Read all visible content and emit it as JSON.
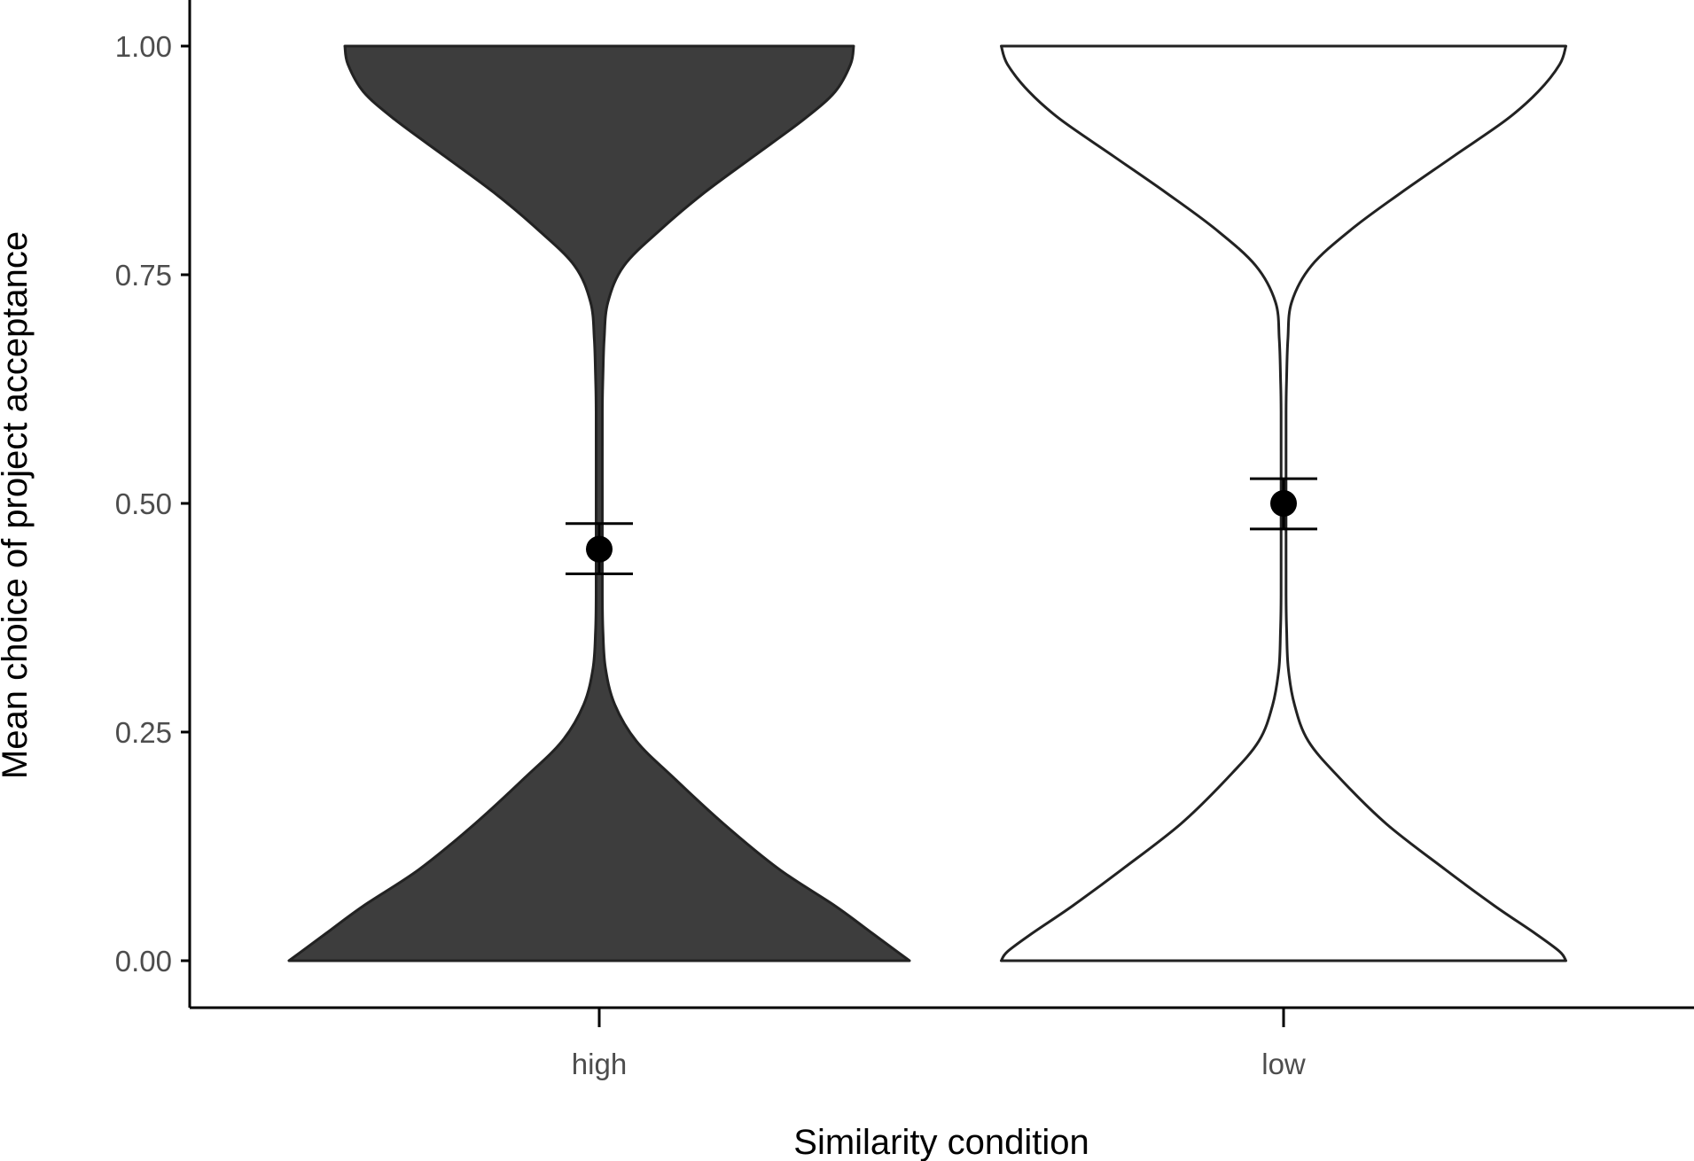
{
  "chart_data": {
    "type": "violin",
    "xlabel": "Similarity condition",
    "ylabel": "Mean choice of project acceptance",
    "categories": [
      "high",
      "low"
    ],
    "ylim": [
      -0.05,
      1.05
    ],
    "yticks": [
      0,
      0.25,
      0.5,
      0.75,
      1
    ],
    "ytick_labels": [
      "0.00",
      "0.25",
      "0.50",
      "0.75",
      "1.00"
    ],
    "grid": false,
    "legend": "none",
    "series": [
      {
        "category": "high",
        "fill": "#3d3d3d",
        "mean": 0.45,
        "error_low": 0.423,
        "error_high": 0.478,
        "density_profile": [
          [
            0.0,
            1.0
          ],
          [
            0.01,
            0.96
          ],
          [
            0.03,
            0.88
          ],
          [
            0.06,
            0.76
          ],
          [
            0.1,
            0.58
          ],
          [
            0.15,
            0.4
          ],
          [
            0.2,
            0.24
          ],
          [
            0.24,
            0.12
          ],
          [
            0.28,
            0.05
          ],
          [
            0.32,
            0.02
          ],
          [
            0.36,
            0.012
          ],
          [
            0.4,
            0.01
          ],
          [
            0.5,
            0.01
          ],
          [
            0.6,
            0.01
          ],
          [
            0.64,
            0.012
          ],
          [
            0.68,
            0.016
          ],
          [
            0.72,
            0.028
          ],
          [
            0.76,
            0.08
          ],
          [
            0.8,
            0.2
          ],
          [
            0.84,
            0.34
          ],
          [
            0.88,
            0.5
          ],
          [
            0.92,
            0.66
          ],
          [
            0.95,
            0.76
          ],
          [
            0.98,
            0.81
          ],
          [
            1.0,
            0.82
          ]
        ]
      },
      {
        "category": "low",
        "fill": "#ffffff",
        "mean": 0.5,
        "error_low": 0.472,
        "error_high": 0.527,
        "density_profile": [
          [
            0.0,
            0.91
          ],
          [
            0.01,
            0.89
          ],
          [
            0.03,
            0.81
          ],
          [
            0.06,
            0.68
          ],
          [
            0.1,
            0.52
          ],
          [
            0.15,
            0.33
          ],
          [
            0.2,
            0.18
          ],
          [
            0.24,
            0.08
          ],
          [
            0.28,
            0.035
          ],
          [
            0.32,
            0.015
          ],
          [
            0.36,
            0.01
          ],
          [
            0.4,
            0.008
          ],
          [
            0.5,
            0.008
          ],
          [
            0.6,
            0.008
          ],
          [
            0.64,
            0.01
          ],
          [
            0.68,
            0.014
          ],
          [
            0.72,
            0.026
          ],
          [
            0.76,
            0.09
          ],
          [
            0.8,
            0.22
          ],
          [
            0.84,
            0.38
          ],
          [
            0.88,
            0.55
          ],
          [
            0.92,
            0.72
          ],
          [
            0.95,
            0.82
          ],
          [
            0.98,
            0.89
          ],
          [
            1.0,
            0.91
          ]
        ]
      }
    ]
  }
}
